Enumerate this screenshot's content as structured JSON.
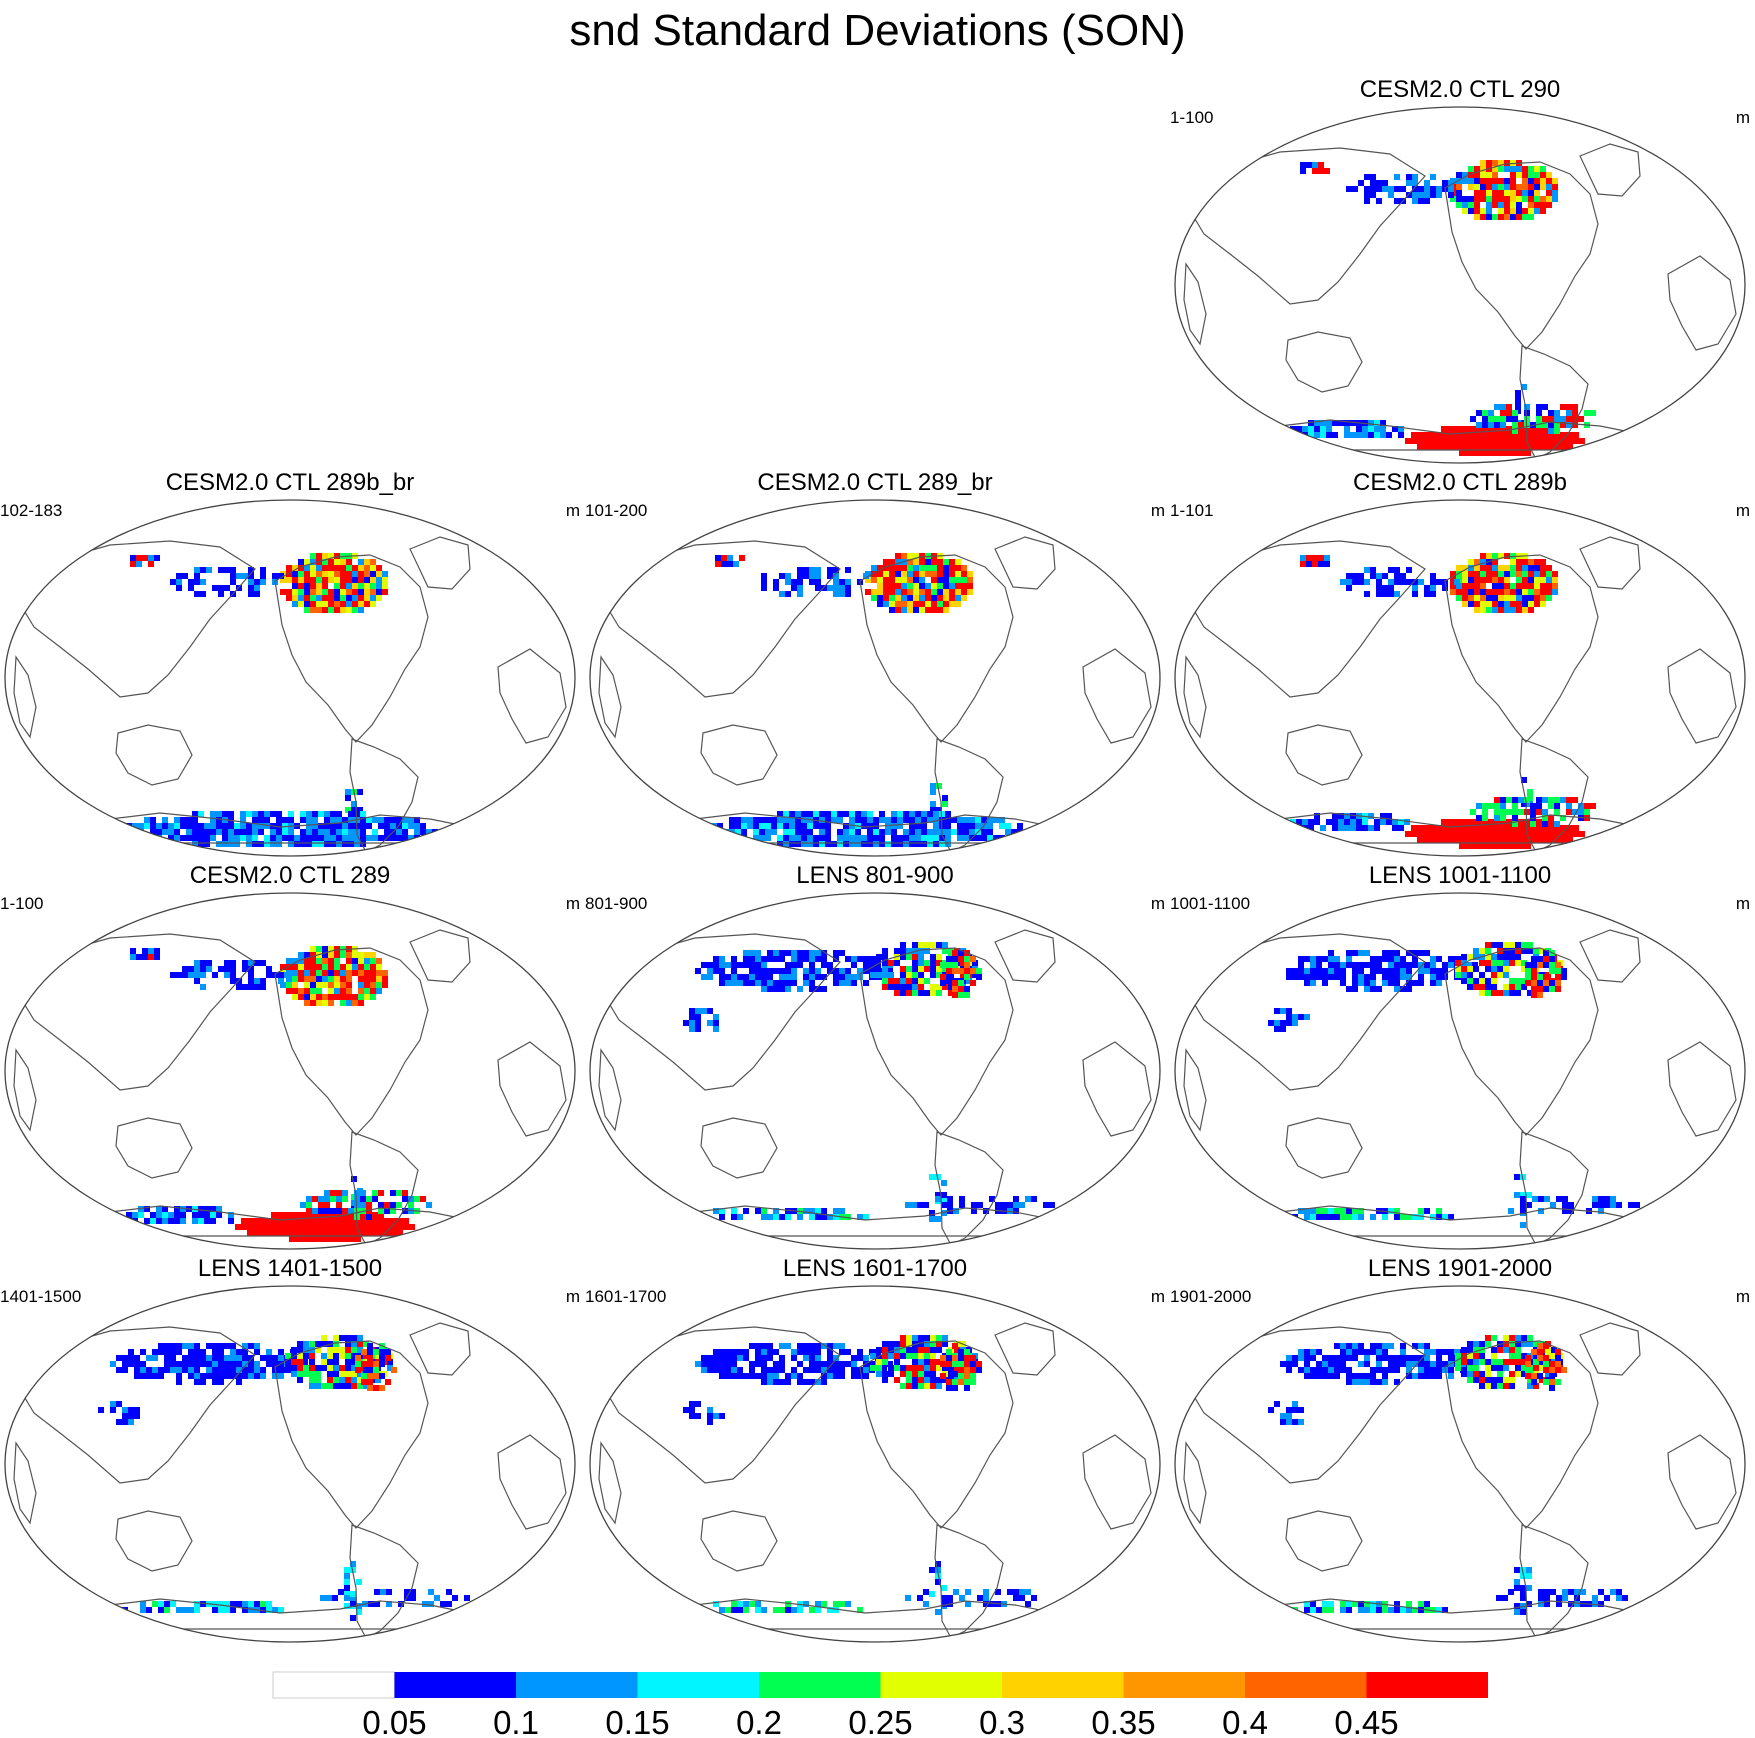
{
  "title": "snd Standard Deviations (SON)",
  "panels": [
    {
      "id": "ctl290",
      "title": "CESM2.0 CTL 290",
      "left_label": "1-100",
      "right_label": "m",
      "col": 2,
      "row": 0,
      "style": "ctl_high"
    },
    {
      "id": "ctl289b_br",
      "title": "CESM2.0 CTL 289b_br",
      "left_label": "102-183",
      "right_label": "m",
      "col": 0,
      "row": 1,
      "style": "ctl_low"
    },
    {
      "id": "ctl289_br",
      "title": "CESM2.0 CTL 289_br",
      "left_label": "101-200",
      "right_label": "m",
      "col": 1,
      "row": 1,
      "style": "ctl_low"
    },
    {
      "id": "ctl289b",
      "title": "CESM2.0 CTL 289b",
      "left_label": "1-101",
      "right_label": "m",
      "col": 2,
      "row": 1,
      "style": "ctl_high"
    },
    {
      "id": "ctl289",
      "title": "CESM2.0 CTL 289",
      "left_label": "1-100",
      "right_label": "m",
      "col": 0,
      "row": 2,
      "style": "ctl_high"
    },
    {
      "id": "lens801",
      "title": "LENS 801-900",
      "left_label": "801-900",
      "right_label": "m",
      "col": 1,
      "row": 2,
      "style": "lens"
    },
    {
      "id": "lens1001",
      "title": "LENS 1001-1100",
      "left_label": "1001-1100",
      "right_label": "m",
      "col": 2,
      "row": 2,
      "style": "lens"
    },
    {
      "id": "lens1401",
      "title": "LENS 1401-1500",
      "left_label": "1401-1500",
      "right_label": "m",
      "col": 0,
      "row": 3,
      "style": "lens"
    },
    {
      "id": "lens1601",
      "title": "LENS 1601-1700",
      "left_label": "1601-1700",
      "right_label": "m",
      "col": 1,
      "row": 3,
      "style": "lens"
    },
    {
      "id": "lens1901",
      "title": "LENS 1901-2000",
      "left_label": "1901-2000",
      "right_label": "m",
      "col": 2,
      "row": 3,
      "style": "lens"
    }
  ],
  "colorbar": {
    "levels": [
      "0.05",
      "0.1",
      "0.15",
      "0.2",
      "0.25",
      "0.3",
      "0.35",
      "0.4",
      "0.45"
    ],
    "colors": [
      "#ffffff",
      "#0000ff",
      "#0096ff",
      "#00f5ff",
      "#00ff50",
      "#e1ff00",
      "#ffd200",
      "#ff9600",
      "#ff6400",
      "#ff0000"
    ]
  }
}
